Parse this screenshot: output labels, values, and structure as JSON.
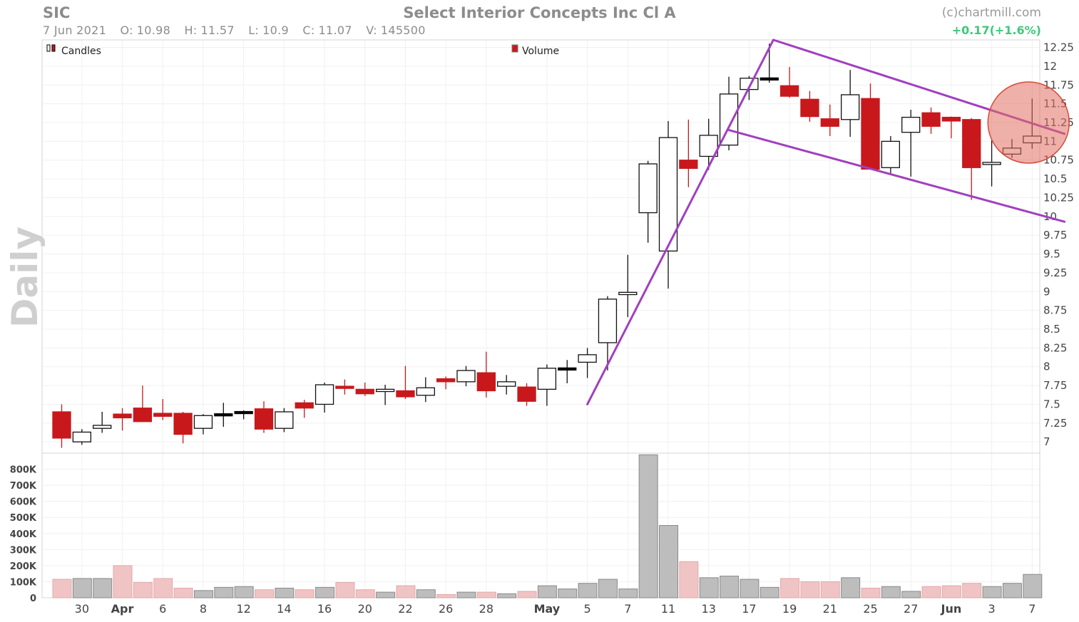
{
  "header": {
    "ticker": "SIC",
    "date": "7 Jun 2021",
    "open_label": "O:",
    "open": "10.98",
    "high_label": "H:",
    "high": "11.57",
    "low_label": "L:",
    "low": "10.9",
    "close_label": "C:",
    "close": "11.07",
    "volume_label": "V:",
    "volume": "145500",
    "title": "Select Interior Concepts Inc Cl A",
    "credit": "(c)chartmill.com",
    "change": "+0.17(+1.6%)"
  },
  "legend": {
    "candles": "Candles",
    "volume": "Volume"
  },
  "period_label": "Daily",
  "colors": {
    "up": "#ffffff",
    "down": "#c8181c",
    "flat": "#000000",
    "trend": "#a23fbf",
    "vol_up": "#bdbdbd",
    "vol_down": "#f0c4c4",
    "highlight": "#e07060",
    "change": "#3cc97a"
  },
  "chart_data": {
    "type": "candlestick",
    "title": "Select Interior Concepts Inc Cl A",
    "price_axis": {
      "ylim": [
        6.85,
        12.35
      ],
      "ticks": [
        "7",
        "7.25",
        "7.5",
        "7.75",
        "8",
        "8.25",
        "8.5",
        "8.75",
        "9",
        "9.25",
        "9.5",
        "9.75",
        "10",
        "10.25",
        "10.5",
        "10.75",
        "11",
        "11.25",
        "11.5",
        "11.75",
        "12",
        "12.25"
      ]
    },
    "volume_axis": {
      "ylim": [
        0,
        900000
      ],
      "ticks": [
        0,
        100000,
        200000,
        300000,
        400000,
        500000,
        600000,
        700000,
        800000
      ],
      "tick_labels": [
        "0",
        "100K",
        "200K",
        "300K",
        "400K",
        "500K",
        "600K",
        "700K",
        "800K"
      ]
    },
    "x_labels": [
      {
        "i": 1,
        "label": "30"
      },
      {
        "i": 3,
        "label": "Apr"
      },
      {
        "i": 5,
        "label": "6"
      },
      {
        "i": 7,
        "label": "8"
      },
      {
        "i": 9,
        "label": "12"
      },
      {
        "i": 11,
        "label": "14"
      },
      {
        "i": 13,
        "label": "16"
      },
      {
        "i": 15,
        "label": "20"
      },
      {
        "i": 17,
        "label": "22"
      },
      {
        "i": 19,
        "label": "26"
      },
      {
        "i": 21,
        "label": "28"
      },
      {
        "i": 24,
        "label": "May"
      },
      {
        "i": 26,
        "label": "5"
      },
      {
        "i": 28,
        "label": "7"
      },
      {
        "i": 30,
        "label": "11"
      },
      {
        "i": 32,
        "label": "13"
      },
      {
        "i": 34,
        "label": "17"
      },
      {
        "i": 36,
        "label": "19"
      },
      {
        "i": 38,
        "label": "21"
      },
      {
        "i": 40,
        "label": "25"
      },
      {
        "i": 42,
        "label": "27"
      },
      {
        "i": 44,
        "label": "Jun"
      },
      {
        "i": 46,
        "label": "3"
      },
      {
        "i": 48,
        "label": "7"
      }
    ],
    "candles": [
      {
        "date": "29 Mar",
        "open": 7.4,
        "high": 7.5,
        "low": 6.92,
        "close": 7.05,
        "volume": 115000
      },
      {
        "date": "30 Mar",
        "open": 7.0,
        "high": 7.17,
        "low": 6.96,
        "close": 7.13,
        "volume": 120000
      },
      {
        "date": "31 Mar",
        "open": 7.18,
        "high": 7.4,
        "low": 7.12,
        "close": 7.22,
        "volume": 120000
      },
      {
        "date": "1 Apr",
        "open": 7.37,
        "high": 7.45,
        "low": 7.15,
        "close": 7.32,
        "volume": 200000
      },
      {
        "date": "5 Apr",
        "open": 7.45,
        "high": 7.75,
        "low": 7.27,
        "close": 7.27,
        "volume": 95000
      },
      {
        "date": "6 Apr",
        "open": 7.38,
        "high": 7.57,
        "low": 7.29,
        "close": 7.34,
        "volume": 120000
      },
      {
        "date": "7 Apr",
        "open": 7.38,
        "high": 7.4,
        "low": 6.98,
        "close": 7.1,
        "volume": 60000
      },
      {
        "date": "8 Apr",
        "open": 7.18,
        "high": 7.37,
        "low": 7.1,
        "close": 7.35,
        "volume": 45000
      },
      {
        "date": "9 Apr",
        "open": 7.36,
        "high": 7.52,
        "low": 7.2,
        "close": 7.36,
        "volume": 65000
      },
      {
        "date": "12 Apr",
        "open": 7.37,
        "high": 7.42,
        "low": 7.3,
        "close": 7.39,
        "volume": 70000
      },
      {
        "date": "13 Apr",
        "open": 7.44,
        "high": 7.54,
        "low": 7.12,
        "close": 7.17,
        "volume": 50000
      },
      {
        "date": "14 Apr",
        "open": 7.18,
        "high": 7.45,
        "low": 7.13,
        "close": 7.4,
        "volume": 60000
      },
      {
        "date": "15 Apr",
        "open": 7.52,
        "high": 7.56,
        "low": 7.32,
        "close": 7.45,
        "volume": 50000
      },
      {
        "date": "16 Apr",
        "open": 7.5,
        "high": 7.79,
        "low": 7.39,
        "close": 7.76,
        "volume": 65000
      },
      {
        "date": "19 Apr",
        "open": 7.74,
        "high": 7.83,
        "low": 7.63,
        "close": 7.72,
        "volume": 95000
      },
      {
        "date": "20 Apr",
        "open": 7.7,
        "high": 7.79,
        "low": 7.61,
        "close": 7.64,
        "volume": 50000
      },
      {
        "date": "21 Apr",
        "open": 7.67,
        "high": 7.76,
        "low": 7.49,
        "close": 7.7,
        "volume": 35000
      },
      {
        "date": "22 Apr",
        "open": 7.68,
        "high": 8.01,
        "low": 7.57,
        "close": 7.6,
        "volume": 75000
      },
      {
        "date": "23 Apr",
        "open": 7.62,
        "high": 7.86,
        "low": 7.53,
        "close": 7.72,
        "volume": 50000
      },
      {
        "date": "26 Apr",
        "open": 7.84,
        "high": 7.87,
        "low": 7.7,
        "close": 7.8,
        "volume": 20000
      },
      {
        "date": "27 Apr",
        "open": 7.8,
        "high": 8.01,
        "low": 7.74,
        "close": 7.95,
        "volume": 35000
      },
      {
        "date": "28 Apr",
        "open": 7.92,
        "high": 8.2,
        "low": 7.59,
        "close": 7.68,
        "volume": 35000
      },
      {
        "date": "29 Apr",
        "open": 7.74,
        "high": 7.89,
        "low": 7.63,
        "close": 7.8,
        "volume": 25000
      },
      {
        "date": "30 Apr",
        "open": 7.73,
        "high": 7.78,
        "low": 7.48,
        "close": 7.54,
        "volume": 40000
      },
      {
        "date": "3 May",
        "open": 7.7,
        "high": 8.03,
        "low": 7.48,
        "close": 7.98,
        "volume": 75000
      },
      {
        "date": "4 May",
        "open": 7.97,
        "high": 8.09,
        "low": 7.78,
        "close": 7.97,
        "volume": 55000
      },
      {
        "date": "5 May",
        "open": 8.06,
        "high": 8.25,
        "low": 7.85,
        "close": 8.16,
        "volume": 90000
      },
      {
        "date": "6 May",
        "open": 8.32,
        "high": 8.94,
        "low": 7.95,
        "close": 8.9,
        "volume": 115000
      },
      {
        "date": "7 May",
        "open": 8.96,
        "high": 9.49,
        "low": 8.66,
        "close": 8.99,
        "volume": 55000
      },
      {
        "date": "10 May",
        "open": 10.05,
        "high": 10.74,
        "low": 9.65,
        "close": 10.7,
        "volume": 890000
      },
      {
        "date": "11 May",
        "open": 9.54,
        "high": 11.27,
        "low": 9.04,
        "close": 11.05,
        "volume": 450000
      },
      {
        "date": "12 May",
        "open": 10.75,
        "high": 11.29,
        "low": 10.39,
        "close": 10.64,
        "volume": 225000
      },
      {
        "date": "13 May",
        "open": 10.8,
        "high": 11.3,
        "low": 10.62,
        "close": 11.08,
        "volume": 125000
      },
      {
        "date": "14 May",
        "open": 10.95,
        "high": 11.86,
        "low": 10.88,
        "close": 11.63,
        "volume": 135000
      },
      {
        "date": "17 May",
        "open": 11.69,
        "high": 11.87,
        "low": 11.55,
        "close": 11.84,
        "volume": 115000
      },
      {
        "date": "18 May",
        "open": 11.83,
        "high": 12.3,
        "low": 11.78,
        "close": 11.83,
        "volume": 65000
      },
      {
        "date": "19 May",
        "open": 11.74,
        "high": 11.99,
        "low": 11.58,
        "close": 11.6,
        "volume": 120000
      },
      {
        "date": "20 May",
        "open": 11.56,
        "high": 11.67,
        "low": 11.26,
        "close": 11.33,
        "volume": 100000
      },
      {
        "date": "21 May",
        "open": 11.3,
        "high": 11.49,
        "low": 11.07,
        "close": 11.2,
        "volume": 100000
      },
      {
        "date": "24 May",
        "open": 11.29,
        "high": 11.95,
        "low": 11.06,
        "close": 11.62,
        "volume": 125000
      },
      {
        "date": "25 May",
        "open": 11.57,
        "high": 11.77,
        "low": 10.66,
        "close": 10.63,
        "volume": 60000
      },
      {
        "date": "26 May",
        "open": 10.65,
        "high": 11.07,
        "low": 10.56,
        "close": 11.0,
        "volume": 70000
      },
      {
        "date": "27 May",
        "open": 11.12,
        "high": 11.42,
        "low": 10.53,
        "close": 11.32,
        "volume": 40000
      },
      {
        "date": "28 May",
        "open": 11.38,
        "high": 11.45,
        "low": 11.1,
        "close": 11.2,
        "volume": 70000
      },
      {
        "date": "1 Jun",
        "open": 11.32,
        "high": 11.33,
        "low": 11.04,
        "close": 11.27,
        "volume": 75000
      },
      {
        "date": "2 Jun",
        "open": 11.29,
        "high": 11.31,
        "low": 10.22,
        "close": 10.65,
        "volume": 90000
      },
      {
        "date": "3 Jun",
        "open": 10.7,
        "high": 11.03,
        "low": 10.4,
        "close": 10.72,
        "volume": 70000
      },
      {
        "date": "4 Jun",
        "open": 10.83,
        "high": 11.03,
        "low": 10.78,
        "close": 10.91,
        "volume": 90000
      },
      {
        "date": "7 Jun",
        "open": 10.98,
        "high": 11.57,
        "low": 10.9,
        "close": 11.07,
        "volume": 145500
      }
    ],
    "trendlines": [
      {
        "name": "rally",
        "from": {
          "i": 26,
          "price": 7.5
        },
        "to": {
          "i": 35.2,
          "price": 12.35
        }
      },
      {
        "name": "channel-top",
        "from": {
          "i": 35.2,
          "price": 12.35
        },
        "to": {
          "i": 49.6,
          "price": 11.1
        }
      },
      {
        "name": "channel-bottom",
        "from": {
          "i": 33,
          "price": 11.15
        },
        "to": {
          "i": 49.6,
          "price": 9.93
        }
      }
    ],
    "highlight_circle": {
      "i": 48,
      "price": 11.25
    }
  }
}
